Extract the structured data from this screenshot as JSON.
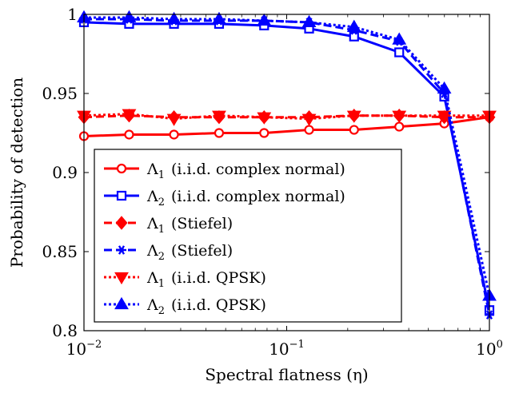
{
  "chart_data": {
    "type": "line",
    "xlabel": "Spectral flatness (η)",
    "ylabel": "Probability of detection",
    "xscale": "log",
    "xlim": [
      0.01,
      1
    ],
    "ylim": [
      0.8,
      1
    ],
    "grid": false,
    "legend_position": "lower-left",
    "x_ticks": [
      {
        "value": 0.01,
        "base": "10",
        "exp": "−2"
      },
      {
        "value": 0.1,
        "base": "10",
        "exp": "−1"
      },
      {
        "value": 1,
        "base": "10",
        "exp": "0"
      }
    ],
    "y_ticks": [
      {
        "value": 0.8,
        "label": "0.8"
      },
      {
        "value": 0.85,
        "label": "0.85"
      },
      {
        "value": 0.9,
        "label": "0.9"
      },
      {
        "value": 0.95,
        "label": "0.95"
      },
      {
        "value": 1,
        "label": "1"
      }
    ],
    "x": [
      0.01,
      0.0167,
      0.0278,
      0.0464,
      0.0774,
      0.129,
      0.215,
      0.359,
      0.599,
      1.0
    ],
    "series": [
      {
        "sym": "Λ",
        "sub": "1",
        "desc": "(i.i.d. complex normal)",
        "color": "#ff0000",
        "dash": "solid",
        "marker": "circle",
        "values": [
          0.923,
          0.924,
          0.924,
          0.925,
          0.925,
          0.927,
          0.927,
          0.929,
          0.931,
          0.935
        ]
      },
      {
        "sym": "Λ",
        "sub": "2",
        "desc": "(i.i.d. complex normal)",
        "color": "#0000ff",
        "dash": "solid",
        "marker": "square",
        "values": [
          0.995,
          0.994,
          0.994,
          0.994,
          0.993,
          0.991,
          0.986,
          0.976,
          0.948,
          0.813
        ]
      },
      {
        "sym": "Λ",
        "sub": "1",
        "desc": "(Stiefel)",
        "color": "#ff0000",
        "dash": "dashed",
        "marker": "diamond",
        "values": [
          0.935,
          0.936,
          0.935,
          0.935,
          0.935,
          0.935,
          0.936,
          0.936,
          0.935,
          0.935
        ]
      },
      {
        "sym": "Λ",
        "sub": "2",
        "desc": "(Stiefel)",
        "color": "#0000ff",
        "dash": "dashed",
        "marker": "asterisk",
        "values": [
          0.997,
          0.997,
          0.996,
          0.996,
          0.996,
          0.995,
          0.99,
          0.983,
          0.95,
          0.81
        ]
      },
      {
        "sym": "Λ",
        "sub": "1",
        "desc": "(i.i.d. QPSK)",
        "color": "#ff0000",
        "dash": "dotted",
        "marker": "triangle-down",
        "values": [
          0.936,
          0.937,
          0.934,
          0.936,
          0.935,
          0.934,
          0.936,
          0.936,
          0.936,
          0.936
        ]
      },
      {
        "sym": "Λ",
        "sub": "2",
        "desc": "(i.i.d. QPSK)",
        "color": "#0000ff",
        "dash": "dotted",
        "marker": "triangle-up",
        "values": [
          0.998,
          0.998,
          0.997,
          0.997,
          0.996,
          0.995,
          0.992,
          0.984,
          0.953,
          0.822
        ]
      }
    ]
  }
}
